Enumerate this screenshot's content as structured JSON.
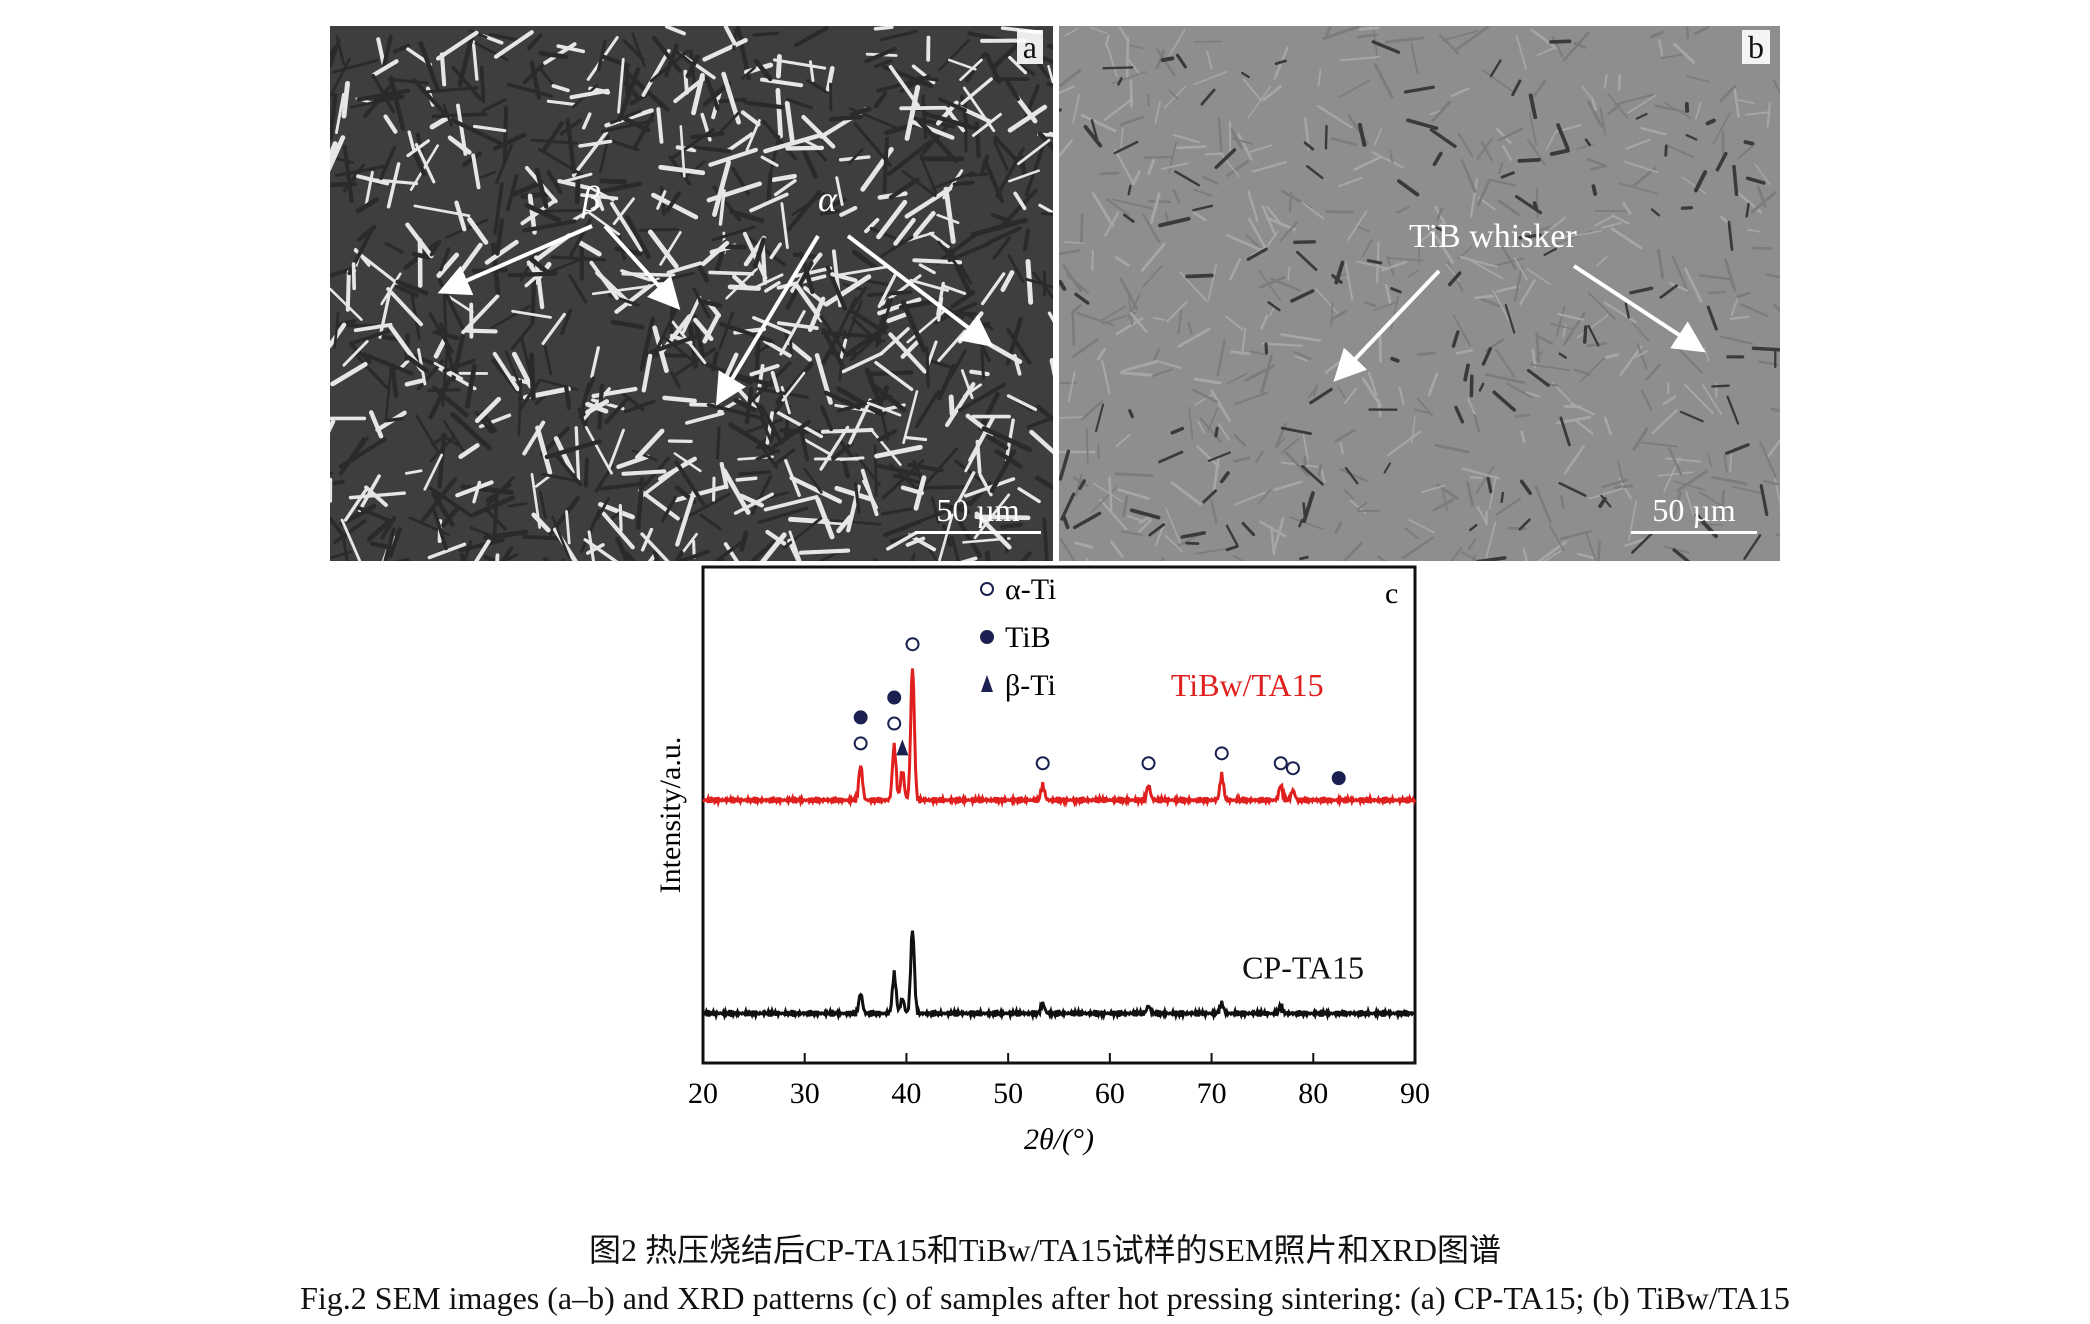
{
  "panels": {
    "a": {
      "label": "a",
      "annotations": {
        "beta": "β",
        "alpha": "α"
      },
      "scale_bar": "50 µm"
    },
    "b": {
      "label": "b",
      "annotations": {
        "whisker": "TiB whisker"
      },
      "scale_bar": "50 µm"
    },
    "c": {
      "label": "c"
    }
  },
  "colors": {
    "tibw_ta15": "#e0201f",
    "cp_ta15": "#111111",
    "sem_a_bg": "#3e3e3e",
    "sem_b_bg": "#8e8e8e"
  },
  "chart_data": {
    "type": "line",
    "xlabel": "2θ/(°)",
    "ylabel": "Intensity/a.u.",
    "xlim": [
      20,
      90
    ],
    "x_ticks": [
      20,
      30,
      40,
      50,
      60,
      70,
      80,
      90
    ],
    "grid": false,
    "legend": {
      "placement": "top-center",
      "entries": [
        {
          "marker": "open-circle",
          "label": "α-Ti"
        },
        {
          "marker": "filled-circle",
          "label": "TiB"
        },
        {
          "marker": "filled-triangle",
          "label": "β-Ti"
        }
      ]
    },
    "series": [
      {
        "name": "TiBw/TA15",
        "color": "#e0201f",
        "baseline": 0.53,
        "peaks": [
          [
            35.5,
            0.07
          ],
          [
            38.8,
            0.11
          ],
          [
            39.6,
            0.06
          ],
          [
            40.6,
            0.27
          ],
          [
            53.4,
            0.03
          ],
          [
            63.8,
            0.03
          ],
          [
            71.0,
            0.05
          ],
          [
            76.8,
            0.03
          ],
          [
            78.0,
            0.02
          ]
        ],
        "markers": [
          [
            35.5,
            "open-circle"
          ],
          [
            35.5,
            "filled-circle"
          ],
          [
            38.8,
            "open-circle"
          ],
          [
            38.8,
            "filled-circle"
          ],
          [
            39.6,
            "filled-triangle"
          ],
          [
            40.6,
            "open-circle"
          ],
          [
            53.4,
            "open-circle"
          ],
          [
            63.8,
            "open-circle"
          ],
          [
            71.0,
            "open-circle"
          ],
          [
            76.8,
            "open-circle"
          ],
          [
            78.0,
            "open-circle"
          ],
          [
            82.5,
            "filled-circle"
          ]
        ]
      },
      {
        "name": "CP-TA15",
        "color": "#111111",
        "baseline": 0.1,
        "peaks": [
          [
            35.5,
            0.04
          ],
          [
            38.8,
            0.08
          ],
          [
            39.6,
            0.03
          ],
          [
            40.6,
            0.17
          ],
          [
            53.4,
            0.02
          ],
          [
            63.8,
            0.015
          ],
          [
            71.0,
            0.02
          ],
          [
            76.8,
            0.015
          ]
        ]
      }
    ]
  },
  "caption": {
    "zh": "图2  热压烧结后CP-TA15和TiBw/TA15试样的SEM照片和XRD图谱",
    "en": "Fig.2  SEM images (a–b) and XRD patterns (c) of samples after hot pressing sintering: (a) CP-TA15; (b) TiBw/TA15"
  }
}
